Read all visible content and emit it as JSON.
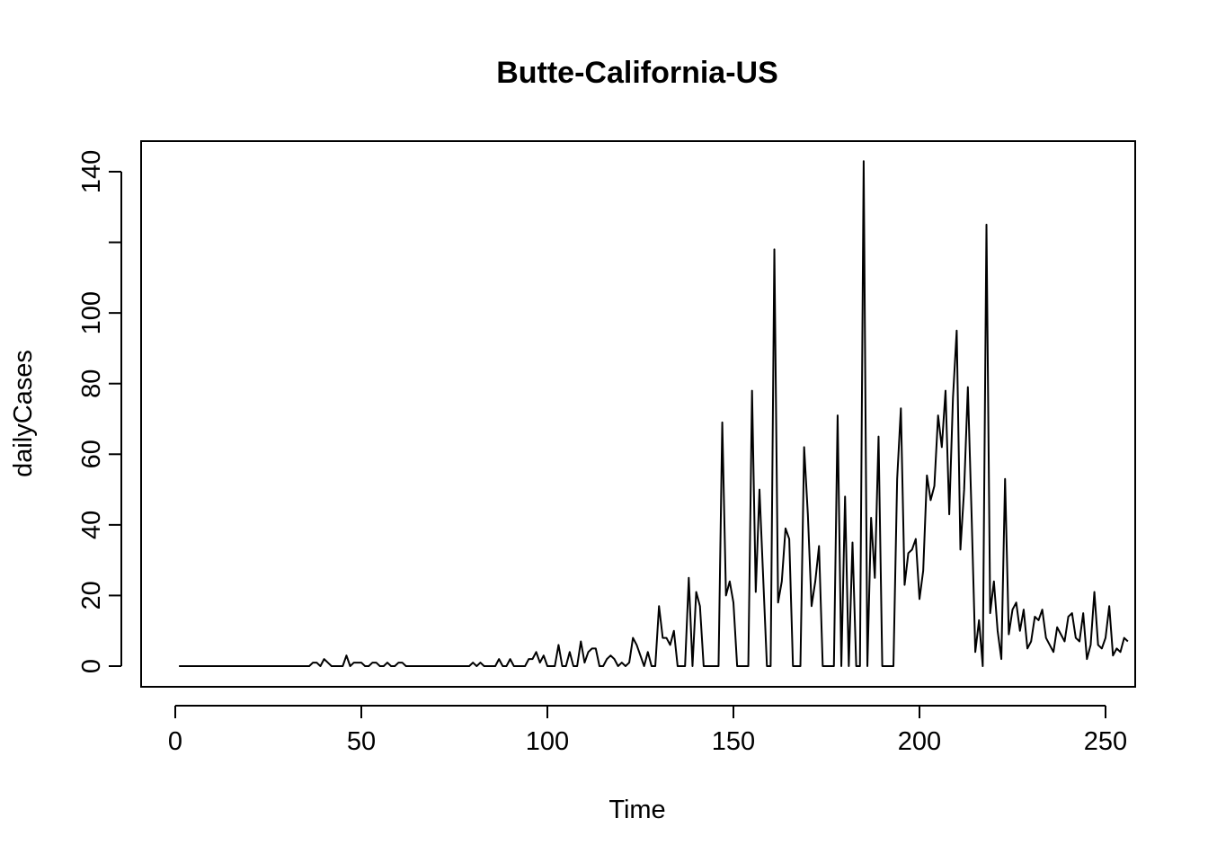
{
  "chart_data": {
    "type": "line",
    "title": "Butte-California-US",
    "xlabel": "Time",
    "ylabel": "dailyCases",
    "xlim": [
      1,
      248
    ],
    "ylim": [
      0,
      143
    ],
    "xticks": [
      0,
      50,
      100,
      150,
      200,
      250
    ],
    "yticks": [
      0,
      20,
      40,
      60,
      80,
      100,
      120,
      140
    ],
    "ytick_labels": [
      "0",
      "20",
      "40",
      "60",
      "80",
      "100",
      "",
      "140"
    ],
    "grid": false,
    "legend": "none",
    "line_color": "#000000",
    "x_start": 1,
    "series": [
      {
        "values": [
          0,
          0,
          0,
          0,
          0,
          0,
          0,
          0,
          0,
          0,
          0,
          0,
          0,
          0,
          0,
          0,
          0,
          0,
          0,
          0,
          0,
          0,
          0,
          0,
          0,
          0,
          0,
          0,
          0,
          0,
          0,
          0,
          0,
          0,
          0,
          0,
          1,
          1,
          0,
          2,
          1,
          0,
          0,
          0,
          0,
          3,
          0,
          1,
          1,
          1,
          0,
          0,
          1,
          1,
          0,
          0,
          1,
          0,
          0,
          1,
          1,
          0,
          0,
          0,
          0,
          0,
          0,
          0,
          0,
          0,
          0,
          0,
          0,
          0,
          0,
          0,
          0,
          0,
          0,
          1,
          0,
          1,
          0,
          0,
          0,
          0,
          2,
          0,
          0,
          2,
          0,
          0,
          0,
          0,
          2,
          2,
          4,
          1,
          3,
          0,
          0,
          0,
          6,
          0,
          0,
          4,
          0,
          0,
          7,
          1,
          4,
          5,
          5,
          0,
          0,
          2,
          3,
          2,
          0,
          1,
          0,
          1,
          8,
          6,
          3,
          0,
          4,
          0,
          0,
          17,
          8,
          8,
          6,
          10,
          0,
          0,
          0,
          25,
          0,
          21,
          17,
          0,
          0,
          0,
          0,
          0,
          69,
          20,
          24,
          18,
          0,
          0,
          0,
          0,
          78,
          21,
          50,
          25,
          0,
          0,
          118,
          18,
          24,
          39,
          36,
          0,
          0,
          0,
          62,
          43,
          17,
          24,
          34,
          0,
          0,
          0,
          0,
          71,
          0,
          48,
          0,
          35,
          0,
          0,
          143,
          0,
          42,
          25,
          65,
          0,
          0,
          0,
          0,
          53,
          73,
          23,
          32,
          33,
          36,
          19,
          27,
          54,
          47,
          51,
          71,
          62,
          78,
          43,
          76,
          95,
          33,
          50,
          79,
          43,
          4,
          13,
          0,
          125,
          15,
          24,
          10,
          2,
          53,
          9,
          16,
          18,
          10,
          16,
          5,
          7,
          14,
          13,
          16,
          8,
          6,
          4,
          11,
          9,
          7,
          14,
          15,
          8,
          7,
          15,
          2,
          6,
          21,
          6,
          5,
          8,
          17,
          3,
          5,
          4,
          8,
          7
        ]
      }
    ]
  }
}
